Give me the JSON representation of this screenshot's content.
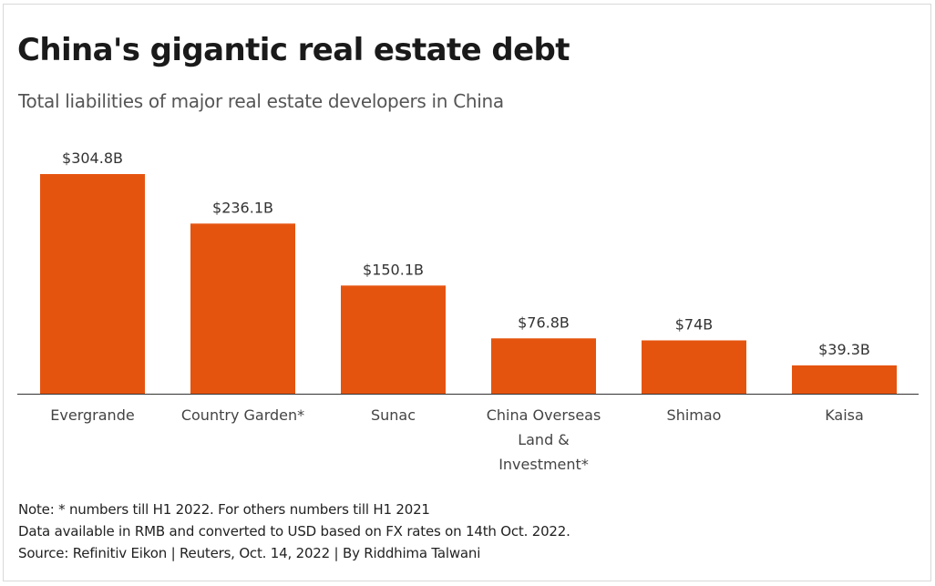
{
  "title": "China's gigantic real estate debt",
  "subtitle": "Total liabilities of major real estate developers in China",
  "chart_data": {
    "type": "bar",
    "categories": [
      [
        "Evergrande"
      ],
      [
        "Country Garden*"
      ],
      [
        "Sunac"
      ],
      [
        "China Overseas",
        "Land &",
        "Investment*"
      ],
      [
        "Shimao"
      ],
      [
        "Kaisa"
      ]
    ],
    "values": [
      304.8,
      236.1,
      150.1,
      76.8,
      74,
      39.3
    ],
    "value_labels": [
      "$304.8B",
      "$236.1B",
      "$150.1B",
      "$76.8B",
      "$74B",
      "$39.3B"
    ],
    "unit": "billion USD",
    "ylim": [
      0,
      304.8
    ],
    "grid": false,
    "bar_color": "#e5540f",
    "axis_color": "#333333"
  },
  "notes": [
    "Note: * numbers till H1 2022. For others numbers till H1 2021",
    "Data available in RMB and converted to USD based on FX rates on 14th Oct. 2022.",
    "Source: Refinitiv Eikon | Reuters, Oct. 14, 2022 | By Riddhima Talwani"
  ]
}
